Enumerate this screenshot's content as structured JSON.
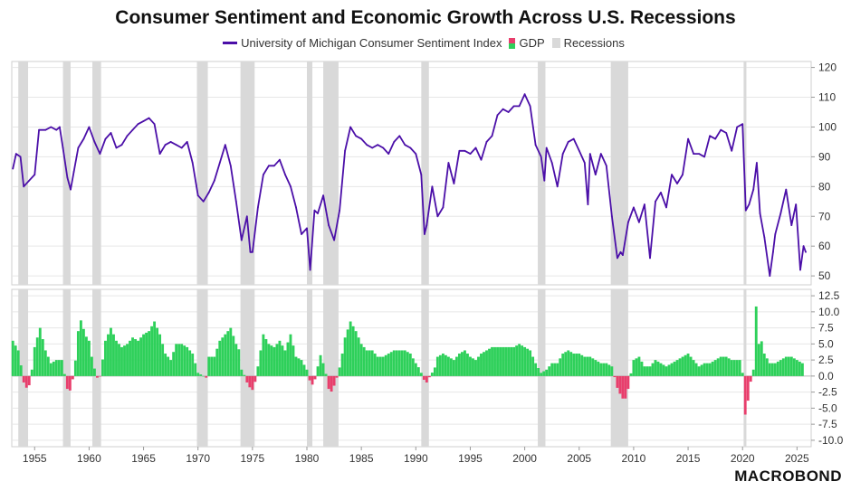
{
  "title": "Consumer Sentiment and Economic Growth Across U.S. Recessions",
  "legend": {
    "sentiment": "University of Michigan Consumer Sentiment Index",
    "gdp": "GDP",
    "recessions": "Recessions"
  },
  "brand": "MACROBOND",
  "colors": {
    "sentiment": "#4b0fa8",
    "gdp_pos": "#2ed05a",
    "gdp_neg": "#e83e6c",
    "recession": "#d9d9d9",
    "grid": "#e6e6e6"
  },
  "chart_data": {
    "type": "line",
    "x_range": [
      1952.9,
      2026.3
    ],
    "x_ticks": [
      "1955",
      "1960",
      "1965",
      "1970",
      "1975",
      "1980",
      "1985",
      "1990",
      "1995",
      "2000",
      "2005",
      "2010",
      "2015",
      "2020",
      "2025"
    ],
    "recessions": [
      [
        1953.5,
        1954.4
      ],
      [
        1957.6,
        1958.3
      ],
      [
        1960.3,
        1961.1
      ],
      [
        1969.9,
        1970.9
      ],
      [
        1973.9,
        1975.2
      ],
      [
        1980.0,
        1980.5
      ],
      [
        1981.5,
        1982.9
      ],
      [
        1990.5,
        1991.2
      ],
      [
        2001.2,
        2001.9
      ],
      [
        2007.9,
        2009.5
      ],
      [
        2020.1,
        2020.35
      ]
    ],
    "sentiment": {
      "name": "University of Michigan Consumer Sentiment Index",
      "ylim": [
        47,
        122
      ],
      "y_ticks": [
        "120",
        "110",
        "100",
        "90",
        "80",
        "70",
        "60",
        "50"
      ],
      "points": [
        [
          1953.0,
          86
        ],
        [
          1953.3,
          91
        ],
        [
          1953.7,
          90
        ],
        [
          1954.0,
          80
        ],
        [
          1954.5,
          82
        ],
        [
          1955.0,
          84
        ],
        [
          1955.4,
          99
        ],
        [
          1956.0,
          99
        ],
        [
          1956.5,
          100
        ],
        [
          1957.0,
          99
        ],
        [
          1957.3,
          100
        ],
        [
          1957.6,
          93
        ],
        [
          1958.0,
          83
        ],
        [
          1958.3,
          79
        ],
        [
          1958.6,
          85
        ],
        [
          1959.0,
          93
        ],
        [
          1959.5,
          96
        ],
        [
          1960.0,
          100
        ],
        [
          1960.5,
          95
        ],
        [
          1961.0,
          91
        ],
        [
          1961.5,
          96
        ],
        [
          1962.0,
          98
        ],
        [
          1962.5,
          93
        ],
        [
          1963.0,
          94
        ],
        [
          1963.5,
          97
        ],
        [
          1964.0,
          99
        ],
        [
          1964.5,
          101
        ],
        [
          1965.0,
          102
        ],
        [
          1965.5,
          103
        ],
        [
          1966.0,
          101
        ],
        [
          1966.5,
          91
        ],
        [
          1967.0,
          94
        ],
        [
          1967.5,
          95
        ],
        [
          1968.0,
          94
        ],
        [
          1968.5,
          93
        ],
        [
          1969.0,
          95
        ],
        [
          1969.5,
          88
        ],
        [
          1970.0,
          77
        ],
        [
          1970.5,
          75
        ],
        [
          1971.0,
          78
        ],
        [
          1971.5,
          82
        ],
        [
          1972.0,
          88
        ],
        [
          1972.5,
          94
        ],
        [
          1973.0,
          87
        ],
        [
          1973.5,
          75
        ],
        [
          1974.0,
          62
        ],
        [
          1974.5,
          70
        ],
        [
          1974.8,
          58
        ],
        [
          1975.0,
          58
        ],
        [
          1975.5,
          73
        ],
        [
          1976.0,
          84
        ],
        [
          1976.5,
          87
        ],
        [
          1977.0,
          87
        ],
        [
          1977.5,
          89
        ],
        [
          1978.0,
          84
        ],
        [
          1978.5,
          80
        ],
        [
          1979.0,
          73
        ],
        [
          1979.5,
          64
        ],
        [
          1980.0,
          66
        ],
        [
          1980.3,
          52
        ],
        [
          1980.7,
          72
        ],
        [
          1981.0,
          71
        ],
        [
          1981.5,
          77
        ],
        [
          1982.0,
          67
        ],
        [
          1982.5,
          62
        ],
        [
          1983.0,
          72
        ],
        [
          1983.5,
          92
        ],
        [
          1984.0,
          100
        ],
        [
          1984.5,
          97
        ],
        [
          1985.0,
          96
        ],
        [
          1985.5,
          94
        ],
        [
          1986.0,
          93
        ],
        [
          1986.5,
          94
        ],
        [
          1987.0,
          93
        ],
        [
          1987.5,
          91
        ],
        [
          1988.0,
          95
        ],
        [
          1988.5,
          97
        ],
        [
          1989.0,
          94
        ],
        [
          1989.5,
          93
        ],
        [
          1990.0,
          91
        ],
        [
          1990.5,
          84
        ],
        [
          1990.8,
          64
        ],
        [
          1991.0,
          67
        ],
        [
          1991.5,
          80
        ],
        [
          1992.0,
          70
        ],
        [
          1992.5,
          73
        ],
        [
          1993.0,
          88
        ],
        [
          1993.5,
          81
        ],
        [
          1994.0,
          92
        ],
        [
          1994.5,
          92
        ],
        [
          1995.0,
          91
        ],
        [
          1995.5,
          93
        ],
        [
          1996.0,
          89
        ],
        [
          1996.5,
          95
        ],
        [
          1997.0,
          97
        ],
        [
          1997.5,
          104
        ],
        [
          1998.0,
          106
        ],
        [
          1998.5,
          105
        ],
        [
          1999.0,
          107
        ],
        [
          1999.5,
          107
        ],
        [
          2000.0,
          111
        ],
        [
          2000.5,
          107
        ],
        [
          2001.0,
          94
        ],
        [
          2001.5,
          90
        ],
        [
          2001.8,
          82
        ],
        [
          2002.0,
          93
        ],
        [
          2002.5,
          88
        ],
        [
          2003.0,
          80
        ],
        [
          2003.5,
          91
        ],
        [
          2004.0,
          95
        ],
        [
          2004.5,
          96
        ],
        [
          2005.0,
          92
        ],
        [
          2005.5,
          88
        ],
        [
          2005.8,
          74
        ],
        [
          2006.0,
          91
        ],
        [
          2006.5,
          84
        ],
        [
          2007.0,
          91
        ],
        [
          2007.5,
          87
        ],
        [
          2008.0,
          70
        ],
        [
          2008.5,
          56
        ],
        [
          2008.8,
          58
        ],
        [
          2009.0,
          57
        ],
        [
          2009.5,
          68
        ],
        [
          2010.0,
          73
        ],
        [
          2010.5,
          68
        ],
        [
          2011.0,
          74
        ],
        [
          2011.5,
          56
        ],
        [
          2012.0,
          75
        ],
        [
          2012.5,
          78
        ],
        [
          2013.0,
          73
        ],
        [
          2013.5,
          84
        ],
        [
          2014.0,
          81
        ],
        [
          2014.5,
          84
        ],
        [
          2015.0,
          96
        ],
        [
          2015.5,
          91
        ],
        [
          2016.0,
          91
        ],
        [
          2016.5,
          90
        ],
        [
          2017.0,
          97
        ],
        [
          2017.5,
          96
        ],
        [
          2018.0,
          99
        ],
        [
          2018.5,
          98
        ],
        [
          2019.0,
          92
        ],
        [
          2019.5,
          100
        ],
        [
          2020.0,
          101
        ],
        [
          2020.3,
          72
        ],
        [
          2020.6,
          74
        ],
        [
          2021.0,
          79
        ],
        [
          2021.3,
          88
        ],
        [
          2021.6,
          71
        ],
        [
          2022.0,
          63
        ],
        [
          2022.5,
          50
        ],
        [
          2022.8,
          58
        ],
        [
          2023.0,
          64
        ],
        [
          2023.5,
          71
        ],
        [
          2024.0,
          79
        ],
        [
          2024.5,
          67
        ],
        [
          2024.9,
          74
        ],
        [
          2025.3,
          52
        ],
        [
          2025.6,
          60
        ],
        [
          2025.8,
          58
        ]
      ]
    },
    "gdp": {
      "name": "GDP",
      "ylim": [
        -11,
        13.5
      ],
      "y_ticks": [
        "12.5",
        "10.0",
        "7.5",
        "5.0",
        "2.5",
        "0.0",
        "-2.5",
        "-5.0",
        "-7.5",
        "-10.0"
      ],
      "points": [
        [
          1953.0,
          5.5
        ],
        [
          1953.5,
          4.0
        ],
        [
          1953.8,
          1.2
        ],
        [
          1954.0,
          -1.0
        ],
        [
          1954.4,
          -2.3
        ],
        [
          1954.7,
          0.3
        ],
        [
          1955.0,
          4.5
        ],
        [
          1955.5,
          7.5
        ],
        [
          1956.0,
          4.0
        ],
        [
          1956.5,
          2.0
        ],
        [
          1957.0,
          2.5
        ],
        [
          1957.5,
          2.5
        ],
        [
          1957.9,
          -1.0
        ],
        [
          1958.1,
          -3.0
        ],
        [
          1958.4,
          -1.5
        ],
        [
          1958.7,
          1.5
        ],
        [
          1959.0,
          7.0
        ],
        [
          1959.3,
          9.0
        ],
        [
          1959.6,
          6.5
        ],
        [
          1960.0,
          5.5
        ],
        [
          1960.3,
          2.5
        ],
        [
          1960.6,
          0.5
        ],
        [
          1960.9,
          -1.0
        ],
        [
          1961.2,
          2.0
        ],
        [
          1961.5,
          5.5
        ],
        [
          1962.0,
          7.5
        ],
        [
          1962.5,
          5.5
        ],
        [
          1963.0,
          4.5
        ],
        [
          1963.5,
          5.0
        ],
        [
          1964.0,
          6.0
        ],
        [
          1964.5,
          5.5
        ],
        [
          1965.0,
          6.5
        ],
        [
          1965.5,
          7.0
        ],
        [
          1966.0,
          8.5
        ],
        [
          1966.5,
          6.5
        ],
        [
          1967.0,
          3.5
        ],
        [
          1967.5,
          2.5
        ],
        [
          1968.0,
          5.0
        ],
        [
          1968.5,
          5.0
        ],
        [
          1969.0,
          4.5
        ],
        [
          1969.5,
          3.5
        ],
        [
          1970.0,
          0.5
        ],
        [
          1970.5,
          0.0
        ],
        [
          1970.8,
          -0.3
        ],
        [
          1971.0,
          3.0
        ],
        [
          1971.5,
          3.0
        ],
        [
          1972.0,
          5.5
        ],
        [
          1972.5,
          6.5
        ],
        [
          1973.0,
          7.5
        ],
        [
          1973.5,
          5.0
        ],
        [
          1973.8,
          4.0
        ],
        [
          1974.0,
          1.0
        ],
        [
          1974.3,
          0.0
        ],
        [
          1974.6,
          -1.5
        ],
        [
          1974.9,
          -2.0
        ],
        [
          1975.1,
          -2.3
        ],
        [
          1975.4,
          0.5
        ],
        [
          1975.7,
          3.5
        ],
        [
          1976.0,
          6.5
        ],
        [
          1976.5,
          5.0
        ],
        [
          1977.0,
          4.5
        ],
        [
          1977.5,
          5.5
        ],
        [
          1978.0,
          4.0
        ],
        [
          1978.5,
          6.5
        ],
        [
          1979.0,
          3.0
        ],
        [
          1979.5,
          2.5
        ],
        [
          1980.0,
          1.0
        ],
        [
          1980.3,
          -1.0
        ],
        [
          1980.6,
          -1.5
        ],
        [
          1980.9,
          0.5
        ],
        [
          1981.2,
          3.5
        ],
        [
          1981.5,
          2.0
        ],
        [
          1981.8,
          0.0
        ],
        [
          1982.0,
          -2.0
        ],
        [
          1982.3,
          -2.5
        ],
        [
          1982.6,
          -1.0
        ],
        [
          1982.9,
          0.5
        ],
        [
          1983.2,
          3.0
        ],
        [
          1983.5,
          6.0
        ],
        [
          1983.8,
          7.5
        ],
        [
          1984.0,
          8.5
        ],
        [
          1984.5,
          7.0
        ],
        [
          1985.0,
          5.0
        ],
        [
          1985.5,
          4.0
        ],
        [
          1986.0,
          4.0
        ],
        [
          1986.5,
          3.0
        ],
        [
          1987.0,
          3.0
        ],
        [
          1987.5,
          3.5
        ],
        [
          1988.0,
          4.0
        ],
        [
          1988.5,
          4.0
        ],
        [
          1989.0,
          4.0
        ],
        [
          1989.5,
          3.5
        ],
        [
          1990.0,
          2.0
        ],
        [
          1990.4,
          1.0
        ],
        [
          1990.7,
          -0.5
        ],
        [
          1991.0,
          -1.0
        ],
        [
          1991.4,
          0.3
        ],
        [
          1991.7,
          1.0
        ],
        [
          1992.0,
          3.0
        ],
        [
          1992.5,
          3.5
        ],
        [
          1993.0,
          3.0
        ],
        [
          1993.5,
          2.5
        ],
        [
          1994.0,
          3.5
        ],
        [
          1994.5,
          4.0
        ],
        [
          1995.0,
          3.0
        ],
        [
          1995.5,
          2.5
        ],
        [
          1996.0,
          3.5
        ],
        [
          1996.5,
          4.0
        ],
        [
          1997.0,
          4.5
        ],
        [
          1997.5,
          4.5
        ],
        [
          1998.0,
          4.5
        ],
        [
          1998.5,
          4.5
        ],
        [
          1999.0,
          4.5
        ],
        [
          1999.5,
          5.0
        ],
        [
          2000.0,
          4.5
        ],
        [
          2000.5,
          4.0
        ],
        [
          2001.0,
          2.0
        ],
        [
          2001.5,
          0.5
        ],
        [
          2002.0,
          1.0
        ],
        [
          2002.5,
          2.0
        ],
        [
          2003.0,
          2.0
        ],
        [
          2003.5,
          3.5
        ],
        [
          2004.0,
          4.0
        ],
        [
          2004.5,
          3.5
        ],
        [
          2005.0,
          3.5
        ],
        [
          2005.5,
          3.0
        ],
        [
          2006.0,
          3.0
        ],
        [
          2006.5,
          2.5
        ],
        [
          2007.0,
          2.0
        ],
        [
          2007.5,
          2.0
        ],
        [
          2008.0,
          1.5
        ],
        [
          2008.3,
          -0.5
        ],
        [
          2008.6,
          -2.5
        ],
        [
          2008.9,
          -3.0
        ],
        [
          2009.1,
          -4.0
        ],
        [
          2009.4,
          -3.0
        ],
        [
          2009.7,
          0.0
        ],
        [
          2010.0,
          2.5
        ],
        [
          2010.5,
          3.0
        ],
        [
          2011.0,
          1.5
        ],
        [
          2011.5,
          1.5
        ],
        [
          2012.0,
          2.5
        ],
        [
          2012.5,
          2.0
        ],
        [
          2013.0,
          1.5
        ],
        [
          2013.5,
          2.0
        ],
        [
          2014.0,
          2.5
        ],
        [
          2014.5,
          3.0
        ],
        [
          2015.0,
          3.5
        ],
        [
          2015.5,
          2.5
        ],
        [
          2016.0,
          1.5
        ],
        [
          2016.5,
          2.0
        ],
        [
          2017.0,
          2.0
        ],
        [
          2017.5,
          2.5
        ],
        [
          2018.0,
          3.0
        ],
        [
          2018.5,
          3.0
        ],
        [
          2019.0,
          2.5
        ],
        [
          2019.5,
          2.5
        ],
        [
          2019.9,
          2.5
        ],
        [
          2020.1,
          -1.5
        ],
        [
          2020.3,
          -7.5
        ],
        [
          2020.6,
          -2.0
        ],
        [
          2021.0,
          1.0
        ],
        [
          2021.2,
          12.0
        ],
        [
          2021.5,
          5.0
        ],
        [
          2021.8,
          5.5
        ],
        [
          2022.0,
          3.5
        ],
        [
          2022.5,
          2.0
        ],
        [
          2023.0,
          2.0
        ],
        [
          2023.5,
          2.5
        ],
        [
          2024.0,
          3.0
        ],
        [
          2024.5,
          3.0
        ],
        [
          2025.0,
          2.5
        ],
        [
          2025.5,
          2.0
        ],
        [
          2025.7,
          2.0
        ]
      ]
    }
  }
}
